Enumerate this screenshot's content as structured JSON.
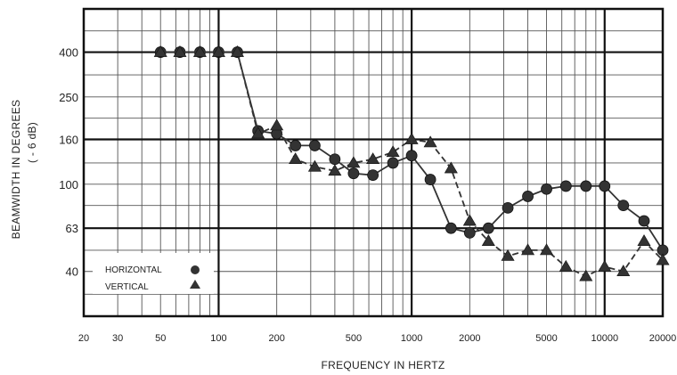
{
  "chart_data": {
    "type": "line",
    "xlabel": "FREQUENCY IN HERTZ",
    "ylabel": "BEAMWIDTH IN DEGREES",
    "ylabel_sub": "( - 6 dB)",
    "x_scale": "log",
    "y_scale": "log",
    "xlim": [
      20,
      20000
    ],
    "ylim": [
      25,
      630
    ],
    "x_ticks": [
      {
        "value": 20,
        "label": "20"
      },
      {
        "value": 30,
        "label": "30"
      },
      {
        "value": 50,
        "label": "50"
      },
      {
        "value": 100,
        "label": "100"
      },
      {
        "value": 200,
        "label": "200"
      },
      {
        "value": 500,
        "label": "500"
      },
      {
        "value": 1000,
        "label": "1000"
      },
      {
        "value": 2000,
        "label": "2000"
      },
      {
        "value": 5000,
        "label": "5000"
      },
      {
        "value": 10000,
        "label": "10000"
      },
      {
        "value": 20000,
        "label": "20000"
      }
    ],
    "y_ticks": [
      {
        "value": 400,
        "label": "400"
      },
      {
        "value": 250,
        "label": "250"
      },
      {
        "value": 160,
        "label": "160"
      },
      {
        "value": 100,
        "label": "100"
      },
      {
        "value": 63,
        "label": "63"
      },
      {
        "value": 40,
        "label": "40"
      }
    ],
    "grid": true,
    "legend_position": "bottom-left",
    "series": [
      {
        "name": "HORIZONTAL",
        "marker": "circle",
        "line_style": "solid",
        "color": "#333333",
        "x": [
          50,
          63,
          80,
          100,
          125,
          160,
          200,
          250,
          315,
          400,
          500,
          630,
          800,
          1000,
          1250,
          1600,
          2000,
          2500,
          3150,
          4000,
          5000,
          6300,
          8000,
          10000,
          12500,
          16000,
          20000
        ],
        "y": [
          400,
          400,
          400,
          400,
          400,
          175,
          170,
          150,
          150,
          130,
          112,
          110,
          125,
          135,
          105,
          63,
          60,
          63,
          78,
          88,
          95,
          98,
          98,
          98,
          80,
          68,
          50
        ]
      },
      {
        "name": "VERTICAL",
        "marker": "triangle",
        "line_style": "dashed",
        "color": "#333333",
        "x": [
          50,
          63,
          80,
          100,
          125,
          160,
          200,
          250,
          315,
          400,
          500,
          630,
          800,
          1000,
          1250,
          1600,
          2000,
          2500,
          3150,
          4000,
          5000,
          6300,
          8000,
          10000,
          12500,
          16000,
          20000
        ],
        "y": [
          400,
          400,
          400,
          400,
          400,
          170,
          185,
          130,
          120,
          115,
          125,
          130,
          140,
          160,
          155,
          118,
          68,
          55,
          47,
          50,
          50,
          42,
          38,
          42,
          40,
          55,
          45
        ]
      }
    ]
  }
}
